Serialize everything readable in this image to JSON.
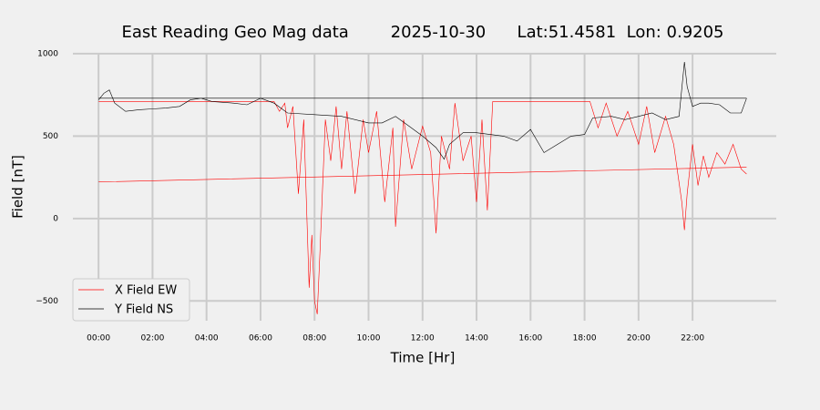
{
  "chart_data": {
    "type": "line",
    "title": "East Reading Geo Mag data        2025-10-30      Lat:51.4581  Lon: 0.9205",
    "x_label": "Time  [Hr]",
    "y_label": "Field  [nT]",
    "xlim": [
      -0.95,
      25.1
    ],
    "ylim": [
      -620,
      1005
    ],
    "xticks": [
      {
        "value": 0,
        "label": "00:00"
      },
      {
        "value": 2,
        "label": "02:00"
      },
      {
        "value": 4,
        "label": "04:00"
      },
      {
        "value": 6,
        "label": "06:00"
      },
      {
        "value": 8,
        "label": "08:00"
      },
      {
        "value": 10,
        "label": "10:00"
      },
      {
        "value": 12,
        "label": "12:00"
      },
      {
        "value": 14,
        "label": "14:00"
      },
      {
        "value": 16,
        "label": "16:00"
      },
      {
        "value": 18,
        "label": "18:00"
      },
      {
        "value": 20,
        "label": "20:00"
      },
      {
        "value": 22,
        "label": "22:00"
      }
    ],
    "yticks": [
      {
        "value": -500,
        "label": "−500"
      },
      0,
      500,
      1000
    ],
    "grid": true,
    "legend": "lower left",
    "series": [
      {
        "name": "X Field EW",
        "color": "#ff0000",
        "x": [
          0,
          6.5,
          6.7,
          6.9,
          7.0,
          7.2,
          7.4,
          7.6,
          7.8,
          7.9,
          8.0,
          8.1,
          8.2,
          8.4,
          8.6,
          8.8,
          9.0,
          9.2,
          9.5,
          9.8,
          10.0,
          10.3,
          10.6,
          10.9,
          11.0,
          11.3,
          11.6,
          12.0,
          12.3,
          12.5,
          12.7,
          13.0,
          13.2,
          13.5,
          13.8,
          14.0,
          14.2,
          14.4,
          14.6,
          18.2,
          18.5,
          18.8,
          19.2,
          19.6,
          20.0,
          20.3,
          20.6,
          21.0,
          21.3,
          21.6,
          21.7,
          21.8,
          22.0,
          22.2,
          22.4,
          22.6,
          22.9,
          23.2,
          23.5,
          23.8,
          24.0,
          null,
          0,
          24
        ],
        "values": [
          710,
          710,
          650,
          700,
          550,
          680,
          150,
          600,
          -420,
          -100,
          -500,
          -580,
          -200,
          600,
          350,
          680,
          300,
          650,
          150,
          600,
          400,
          650,
          100,
          550,
          -50,
          600,
          300,
          560,
          400,
          -90,
          500,
          300,
          700,
          350,
          500,
          100,
          600,
          50,
          710,
          710,
          550,
          700,
          500,
          650,
          450,
          680,
          400,
          620,
          450,
          100,
          -70,
          150,
          450,
          200,
          380,
          250,
          400,
          330,
          450,
          300,
          270,
          null,
          222,
          312
        ]
      },
      {
        "name": "Y Field NS",
        "color": "#000000",
        "x": [
          0,
          0.2,
          0.4,
          0.6,
          1.0,
          1.5,
          2,
          2.5,
          3,
          3.4,
          3.8,
          4.2,
          5,
          5.5,
          6,
          6.5,
          7,
          8,
          9,
          10,
          10.5,
          11,
          11.5,
          12,
          12.5,
          12.8,
          13,
          13.5,
          14,
          14.5,
          15,
          15.5,
          16,
          16.5,
          17,
          17.5,
          18,
          18.3,
          19,
          19.5,
          20,
          20.5,
          21,
          21.5,
          21.7,
          21.8,
          22,
          22.3,
          22.6,
          23,
          23.4,
          23.8,
          24,
          null,
          0,
          24
        ],
        "values": [
          720,
          760,
          780,
          700,
          650,
          660,
          665,
          670,
          680,
          720,
          730,
          710,
          700,
          690,
          730,
          700,
          640,
          630,
          620,
          580,
          580,
          620,
          560,
          500,
          430,
          360,
          450,
          520,
          520,
          510,
          500,
          470,
          540,
          400,
          450,
          500,
          510,
          610,
          620,
          600,
          620,
          640,
          600,
          620,
          950,
          800,
          680,
          700,
          700,
          690,
          640,
          640,
          730,
          null,
          730,
          730
        ]
      }
    ]
  }
}
